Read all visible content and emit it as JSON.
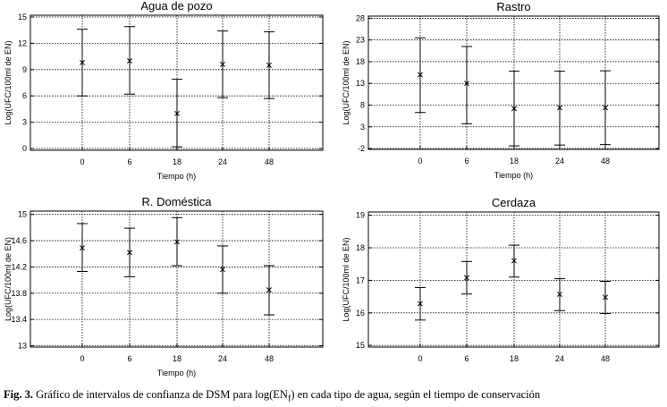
{
  "chart_data": [
    {
      "type": "errorbar",
      "title": "Agua de pozo",
      "xlabel": "Tiempo (h)",
      "ylabel": "Log(UFC/100ml de EN)",
      "categories": [
        "0",
        "6",
        "18",
        "24",
        "48"
      ],
      "yticks": [
        0,
        3,
        6,
        9,
        12,
        15
      ],
      "ylim": [
        -0.2,
        15.2
      ],
      "values": [
        9.8,
        10.0,
        4.0,
        9.6,
        9.5
      ],
      "lower": [
        6.0,
        6.2,
        0.2,
        5.8,
        5.7
      ],
      "upper": [
        13.6,
        13.9,
        7.9,
        13.4,
        13.3
      ],
      "grid": true
    },
    {
      "type": "errorbar",
      "title": "Rastro",
      "xlabel": "Tiempo (h)",
      "ylabel": "Log(UFC/100ml de EN)",
      "categories": [
        "0",
        "6",
        "18",
        "24",
        "48"
      ],
      "yticks": [
        -2,
        3,
        8,
        13,
        18,
        23,
        28
      ],
      "ylim": [
        -2.2,
        28.5
      ],
      "values": [
        15.0,
        13.0,
        7.2,
        7.4,
        7.4
      ],
      "lower": [
        6.3,
        3.7,
        -1.4,
        -1.2,
        -1.1
      ],
      "upper": [
        23.5,
        21.5,
        15.8,
        15.8,
        15.9
      ],
      "grid": true
    },
    {
      "type": "errorbar",
      "title": "R. Doméstica",
      "xlabel": "Tiempo (h)",
      "ylabel": "Log(UFC/100ml de EN)",
      "categories": [
        "0",
        "6",
        "18",
        "24",
        "48"
      ],
      "yticks": [
        "13",
        "13.4",
        "13.8",
        "14.2",
        "14.6",
        "15"
      ],
      "ylim": [
        12.98,
        15.05
      ],
      "values": [
        14.49,
        14.42,
        14.58,
        14.16,
        13.85
      ],
      "lower": [
        14.13,
        14.05,
        14.22,
        13.8,
        13.47
      ],
      "upper": [
        14.86,
        14.79,
        14.95,
        14.52,
        14.22
      ],
      "grid": true
    },
    {
      "type": "errorbar",
      "title": "Cerdaza",
      "xlabel": "",
      "ylabel": "Log(UFC/100ml de EN)",
      "categories": [
        "0",
        "6",
        "18",
        "24",
        "48"
      ],
      "yticks": [
        15,
        16,
        17,
        18,
        19
      ],
      "ylim": [
        14.95,
        19.1
      ],
      "values": [
        16.28,
        17.08,
        17.6,
        16.57,
        16.48
      ],
      "lower": [
        15.78,
        16.58,
        17.1,
        16.07,
        15.98
      ],
      "upper": [
        16.78,
        17.58,
        18.08,
        17.05,
        16.97
      ],
      "grid": true
    }
  ],
  "caption": {
    "label": "Fig. 3.",
    "text_before": " Gráfico de intervalos de confianza de DSM para log(EN",
    "subscript": "f",
    "text_after": ") en cada tipo de agua, según el tiempo de conservación"
  }
}
